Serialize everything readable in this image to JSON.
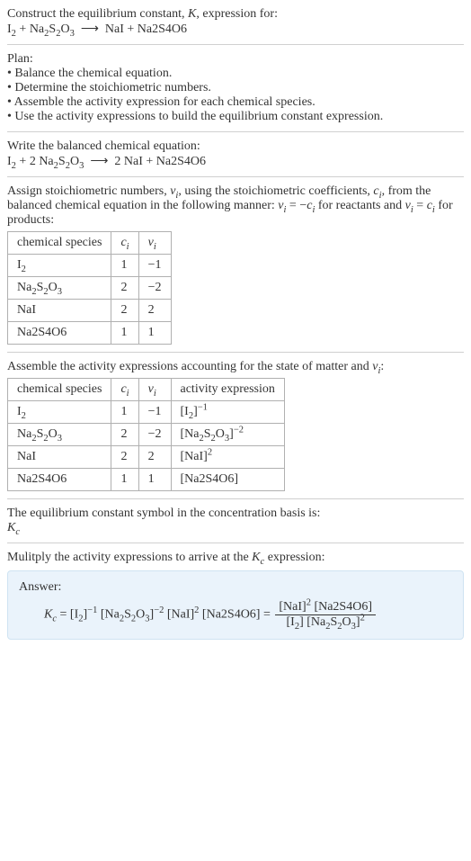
{
  "intro": {
    "line1_pre": "Construct the equilibrium constant, ",
    "K": "K",
    "line1_post": ", expression for:"
  },
  "plan": {
    "header": "Plan:",
    "items": [
      "• Balance the chemical equation.",
      "• Determine the stoichiometric numbers.",
      "• Assemble the activity expression for each chemical species.",
      "• Use the activity expressions to build the equilibrium constant expression."
    ]
  },
  "balanced_label": "Write the balanced chemical equation:",
  "assign": {
    "pre": "Assign stoichiometric numbers, ",
    "nu": "ν",
    "i": "i",
    "mid1": ", using the stoichiometric coefficients, ",
    "c": "c",
    "mid2": ", from the balanced chemical equation in the following manner: ",
    "rel_reactants_lhs": "ν",
    "rel_eq": " = −",
    "rel_c": "c",
    "rel_reactants_post": " for reactants and ",
    "rel_products_lhs": "ν",
    "rel_products_eq": " = ",
    "rel_products_c": "c",
    "rel_products_post": " for products:"
  },
  "table1": {
    "headers": {
      "species": "chemical species"
    },
    "rows": [
      {
        "c": "1",
        "nu": "−1"
      },
      {
        "c": "2",
        "nu": "−2"
      },
      {
        "c": "2",
        "nu": "2"
      },
      {
        "c": "1",
        "nu": "1"
      }
    ]
  },
  "assemble": {
    "pre": "Assemble the activity expressions accounting for the state of matter and ",
    "nu": "ν",
    "i": "i",
    "post": ":"
  },
  "table2": {
    "headers": {
      "species": "chemical species",
      "activity": "activity expression"
    },
    "rows": [
      {
        "c": "1",
        "nu": "−1"
      },
      {
        "c": "2",
        "nu": "−2"
      },
      {
        "c": "2",
        "nu": "2"
      },
      {
        "c": "1",
        "nu": "1"
      }
    ]
  },
  "symbol": {
    "line": "The equilibrium constant symbol in the concentration basis is:",
    "Kc_K": "K",
    "Kc_c": "c"
  },
  "multiply": {
    "pre": "Mulitply the activity expressions to arrive at the ",
    "K": "K",
    "c": "c",
    "post": " expression:"
  },
  "answer": {
    "label": "Answer:"
  },
  "colors": {
    "rule": "#d0d0d0",
    "border": "#b0b0b0",
    "answer_bg": "#eaf3fb",
    "answer_border": "#cfe3f2",
    "text": "#333333"
  }
}
